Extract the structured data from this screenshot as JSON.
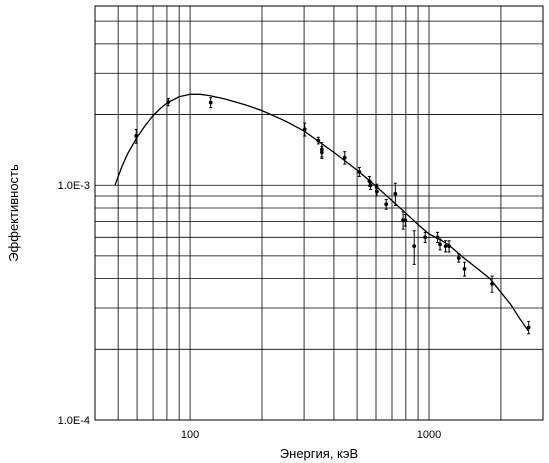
{
  "chart_data": {
    "type": "scatter",
    "title": "",
    "xlabel": "Энергия, кэВ",
    "ylabel": "Эффективность",
    "xscale": "log",
    "yscale": "log",
    "xlim": [
      40,
      3000
    ],
    "ylim": [
      0.0001,
      0.0058
    ],
    "grid": true,
    "x_tick_labels": [
      {
        "value": 100,
        "label": "100"
      },
      {
        "value": 1000,
        "label": "1000"
      }
    ],
    "y_tick_labels": [
      {
        "value": 0.001,
        "label": "1.0E-3"
      },
      {
        "value": 0.0001,
        "label": "1.0E-4"
      }
    ],
    "x_gridlines": [
      40,
      50,
      60,
      70,
      80,
      90,
      100,
      200,
      300,
      400,
      500,
      600,
      700,
      800,
      900,
      1000,
      2000,
      3000
    ],
    "y_gridlines": [
      0.0001,
      0.0002,
      0.0003,
      0.0004,
      0.0005,
      0.0006,
      0.0007,
      0.0008,
      0.0009,
      0.001,
      0.002,
      0.003,
      0.004,
      0.005
    ],
    "series": [
      {
        "kind": "points-with-error-bars",
        "points": [
          {
            "x": 59.5,
            "y": 0.00162,
            "err": 0.00011
          },
          {
            "x": 81,
            "y": 0.00226,
            "err": 8e-05
          },
          {
            "x": 122,
            "y": 0.00225,
            "err": 0.00011
          },
          {
            "x": 302,
            "y": 0.00173,
            "err": 0.00011
          },
          {
            "x": 344,
            "y": 0.00155,
            "err": 5e-05
          },
          {
            "x": 356,
            "y": 0.00142,
            "err": 0.0001
          },
          {
            "x": 356,
            "y": 0.00138,
            "err": 8e-05
          },
          {
            "x": 444,
            "y": 0.00131,
            "err": 8e-05
          },
          {
            "x": 511,
            "y": 0.00114,
            "err": 5e-05
          },
          {
            "x": 563,
            "y": 0.00104,
            "err": 5e-05
          },
          {
            "x": 569,
            "y": 0.001,
            "err": 4e-05
          },
          {
            "x": 604,
            "y": 0.00098,
            "err": 3e-05
          },
          {
            "x": 605,
            "y": 0.00094,
            "err": 4e-05
          },
          {
            "x": 662,
            "y": 0.00083,
            "err": 4e-05
          },
          {
            "x": 723,
            "y": 0.00092,
            "err": 0.0001
          },
          {
            "x": 779,
            "y": 0.00071,
            "err": 6e-05
          },
          {
            "x": 796,
            "y": 0.00071,
            "err": 4e-05
          },
          {
            "x": 867,
            "y": 0.00055,
            "err": 9e-05
          },
          {
            "x": 964,
            "y": 0.0006,
            "err": 3e-05
          },
          {
            "x": 1086,
            "y": 0.0006,
            "err": 3e-05
          },
          {
            "x": 1112,
            "y": 0.00056,
            "err": 3e-05
          },
          {
            "x": 1173,
            "y": 0.00055,
            "err": 3e-05
          },
          {
            "x": 1213,
            "y": 0.00055,
            "err": 3e-05
          },
          {
            "x": 1332,
            "y": 0.00049,
            "err": 2e-05
          },
          {
            "x": 1408,
            "y": 0.00044,
            "err": 3e-05
          },
          {
            "x": 1836,
            "y": 0.00038,
            "err": 3e-05
          },
          {
            "x": 2614,
            "y": 0.000248,
            "err": 1.5e-05
          }
        ]
      },
      {
        "kind": "fitted-curve",
        "x": [
          48.5,
          52,
          55,
          60,
          65,
          70,
          75,
          80,
          90,
          100,
          110,
          120,
          140,
          170,
          200,
          250,
          300,
          350,
          400,
          500,
          600,
          700,
          800,
          900,
          1000,
          1100,
          1200,
          1400,
          1600,
          1800,
          2000,
          2200,
          2400,
          2600
        ],
        "y": [
          0.001,
          0.00121,
          0.00137,
          0.0016,
          0.0018,
          0.00198,
          0.00212,
          0.00224,
          0.00238,
          0.00244,
          0.00244,
          0.00241,
          0.00233,
          0.0022,
          0.00208,
          0.00188,
          0.0017,
          0.00152,
          0.00138,
          0.00116,
          0.00099,
          0.00086,
          0.00076,
          0.00068,
          0.00062,
          0.00059,
          0.00056,
          0.00049,
          0.00044,
          0.0004,
          0.00035,
          0.00031,
          0.00027,
          0.00024
        ]
      }
    ]
  }
}
